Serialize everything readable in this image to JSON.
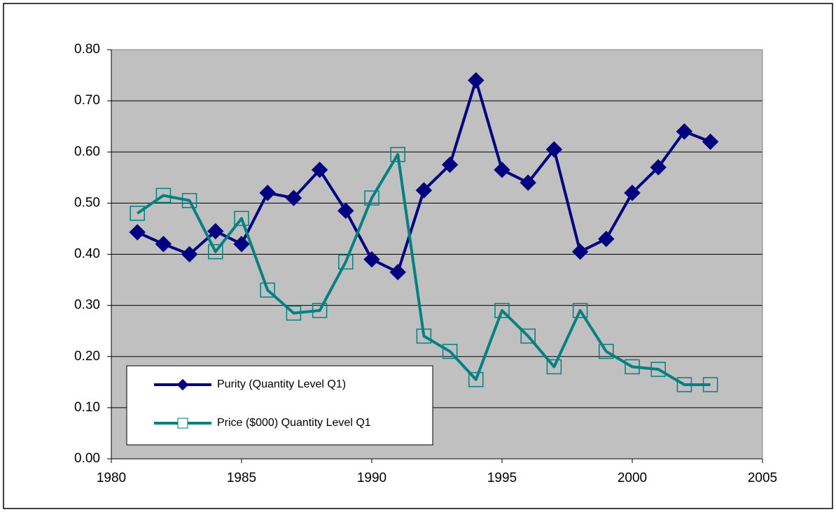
{
  "chart_data": {
    "type": "line",
    "x": [
      1981,
      1982,
      1983,
      1984,
      1985,
      1986,
      1987,
      1988,
      1989,
      1990,
      1991,
      1992,
      1993,
      1994,
      1995,
      1996,
      1997,
      1998,
      1999,
      2000,
      2001,
      2002,
      2003
    ],
    "series": [
      {
        "name": "Purity (Quantity Level Q1)",
        "color": "#000080",
        "marker": "diamond",
        "values": [
          0.443,
          0.42,
          0.4,
          0.445,
          0.42,
          0.52,
          0.51,
          0.565,
          0.485,
          0.39,
          0.365,
          0.525,
          0.575,
          0.74,
          0.565,
          0.54,
          0.605,
          0.405,
          0.43,
          0.52,
          0.57,
          0.64,
          0.62
        ]
      },
      {
        "name": "Price ($000) Quantity Level Q1",
        "color": "#008080",
        "marker": "square",
        "values": [
          0.48,
          0.515,
          0.505,
          0.405,
          0.47,
          0.33,
          0.285,
          0.29,
          0.385,
          0.51,
          0.595,
          0.24,
          0.21,
          0.155,
          0.29,
          0.24,
          0.18,
          0.29,
          0.21,
          0.18,
          0.175,
          0.145,
          0.145
        ]
      }
    ],
    "xlim": [
      1980,
      2005
    ],
    "xticks": [
      1980,
      1985,
      1990,
      1995,
      2000,
      2005
    ],
    "ylim": [
      0,
      0.8
    ],
    "yticks": [
      {
        "value": 0,
        "label": "0.00"
      },
      {
        "value": 0.1,
        "label": "0.10"
      },
      {
        "value": 0.2,
        "label": "0.20"
      },
      {
        "value": 0.3,
        "label": "0.30"
      },
      {
        "value": 0.4,
        "label": "0.40"
      },
      {
        "value": 0.5,
        "label": "0.50"
      },
      {
        "value": 0.6,
        "label": "0.60"
      },
      {
        "value": 0.7,
        "label": "0.70"
      },
      {
        "value": 0.8,
        "label": "0.80"
      }
    ],
    "grid": true,
    "plot_background": "#c0c0c0",
    "legend": "lower left"
  }
}
